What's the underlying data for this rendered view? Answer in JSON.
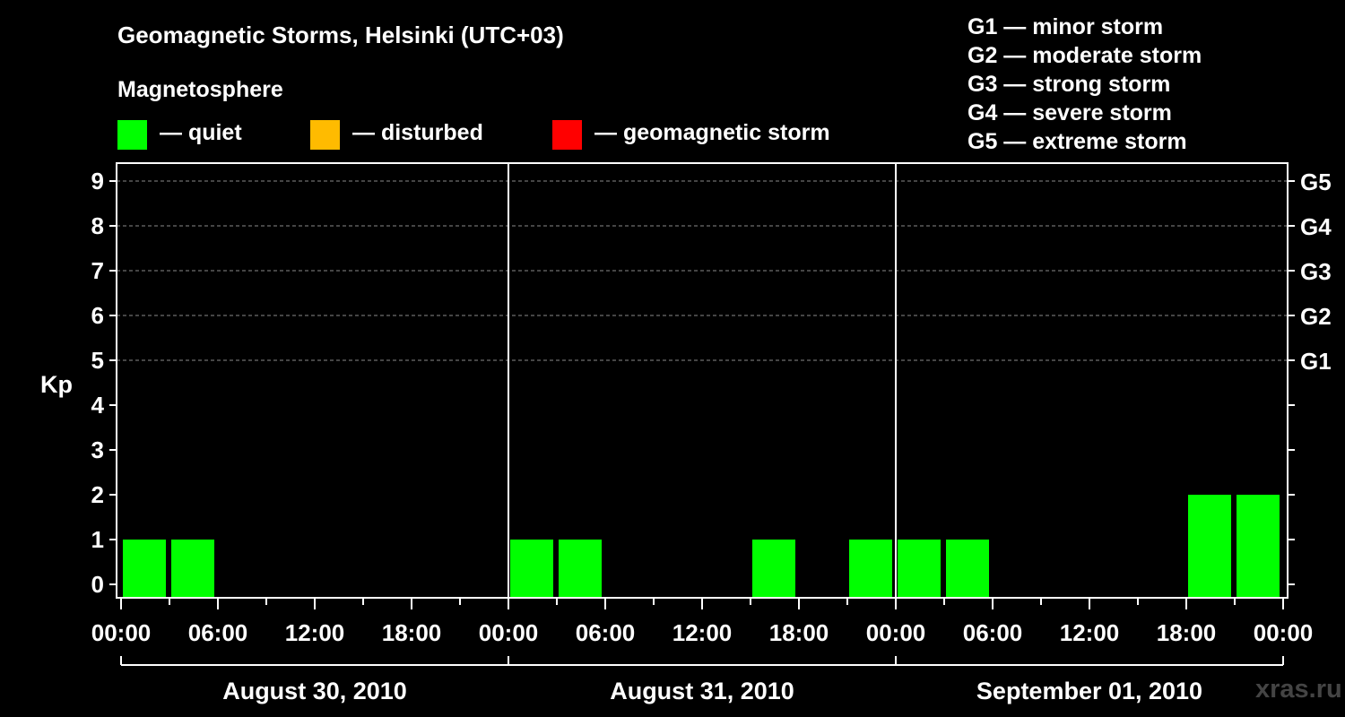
{
  "title": "Geomagnetic Storms, Helsinki (UTC+03)",
  "legend": {
    "title": "Magnetosphere",
    "items": [
      {
        "label": "— quiet",
        "color": "#00ff00"
      },
      {
        "label": "— disturbed",
        "color": "#ffbb00"
      },
      {
        "label": "— geomagnetic storm",
        "color": "#ff0000"
      }
    ]
  },
  "storm_scale": [
    "G1 — minor storm",
    "G2 — moderate storm",
    "G3 — strong storm",
    "G4 — severe storm",
    "G5 — extreme storm"
  ],
  "watermark": "xras.ru",
  "chart_data": {
    "type": "bar",
    "title": "Geomagnetic Storms, Helsinki (UTC+03)",
    "ylabel": "Kp",
    "ylim": [
      0,
      9
    ],
    "y_ticks": [
      "0",
      "1",
      "2",
      "3",
      "4",
      "5",
      "6",
      "7",
      "8",
      "9"
    ],
    "right_ticks": [
      {
        "kp": 5,
        "label": "G1"
      },
      {
        "kp": 6,
        "label": "G2"
      },
      {
        "kp": 7,
        "label": "G3"
      },
      {
        "kp": 8,
        "label": "G4"
      },
      {
        "kp": 9,
        "label": "G5"
      }
    ],
    "x_tick_labels": [
      "00:00",
      "06:00",
      "12:00",
      "18:00",
      "00:00",
      "06:00",
      "12:00",
      "18:00",
      "00:00",
      "06:00",
      "12:00",
      "18:00",
      "00:00"
    ],
    "days": [
      "August 30, 2010",
      "August 31, 2010",
      "September 01, 2010"
    ],
    "grid": "dashed horizontal at Kp 5–9",
    "bars": [
      {
        "day": "August 30, 2010",
        "start": "00:00",
        "kp": 1,
        "color": "#00ff00"
      },
      {
        "day": "August 30, 2010",
        "start": "03:00",
        "kp": 1,
        "color": "#00ff00"
      },
      {
        "day": "August 31, 2010",
        "start": "00:00",
        "kp": 1,
        "color": "#00ff00"
      },
      {
        "day": "August 31, 2010",
        "start": "03:00",
        "kp": 1,
        "color": "#00ff00"
      },
      {
        "day": "August 31, 2010",
        "start": "15:00",
        "kp": 1,
        "color": "#00ff00"
      },
      {
        "day": "August 31, 2010",
        "start": "21:00",
        "kp": 1,
        "color": "#00ff00"
      },
      {
        "day": "September 01, 2010",
        "start": "00:00",
        "kp": 1,
        "color": "#00ff00"
      },
      {
        "day": "September 01, 2010",
        "start": "03:00",
        "kp": 1,
        "color": "#00ff00"
      },
      {
        "day": "September 01, 2010",
        "start": "18:00",
        "kp": 2,
        "color": "#00ff00"
      },
      {
        "day": "September 01, 2010",
        "start": "21:00",
        "kp": 2,
        "color": "#00ff00"
      }
    ]
  }
}
